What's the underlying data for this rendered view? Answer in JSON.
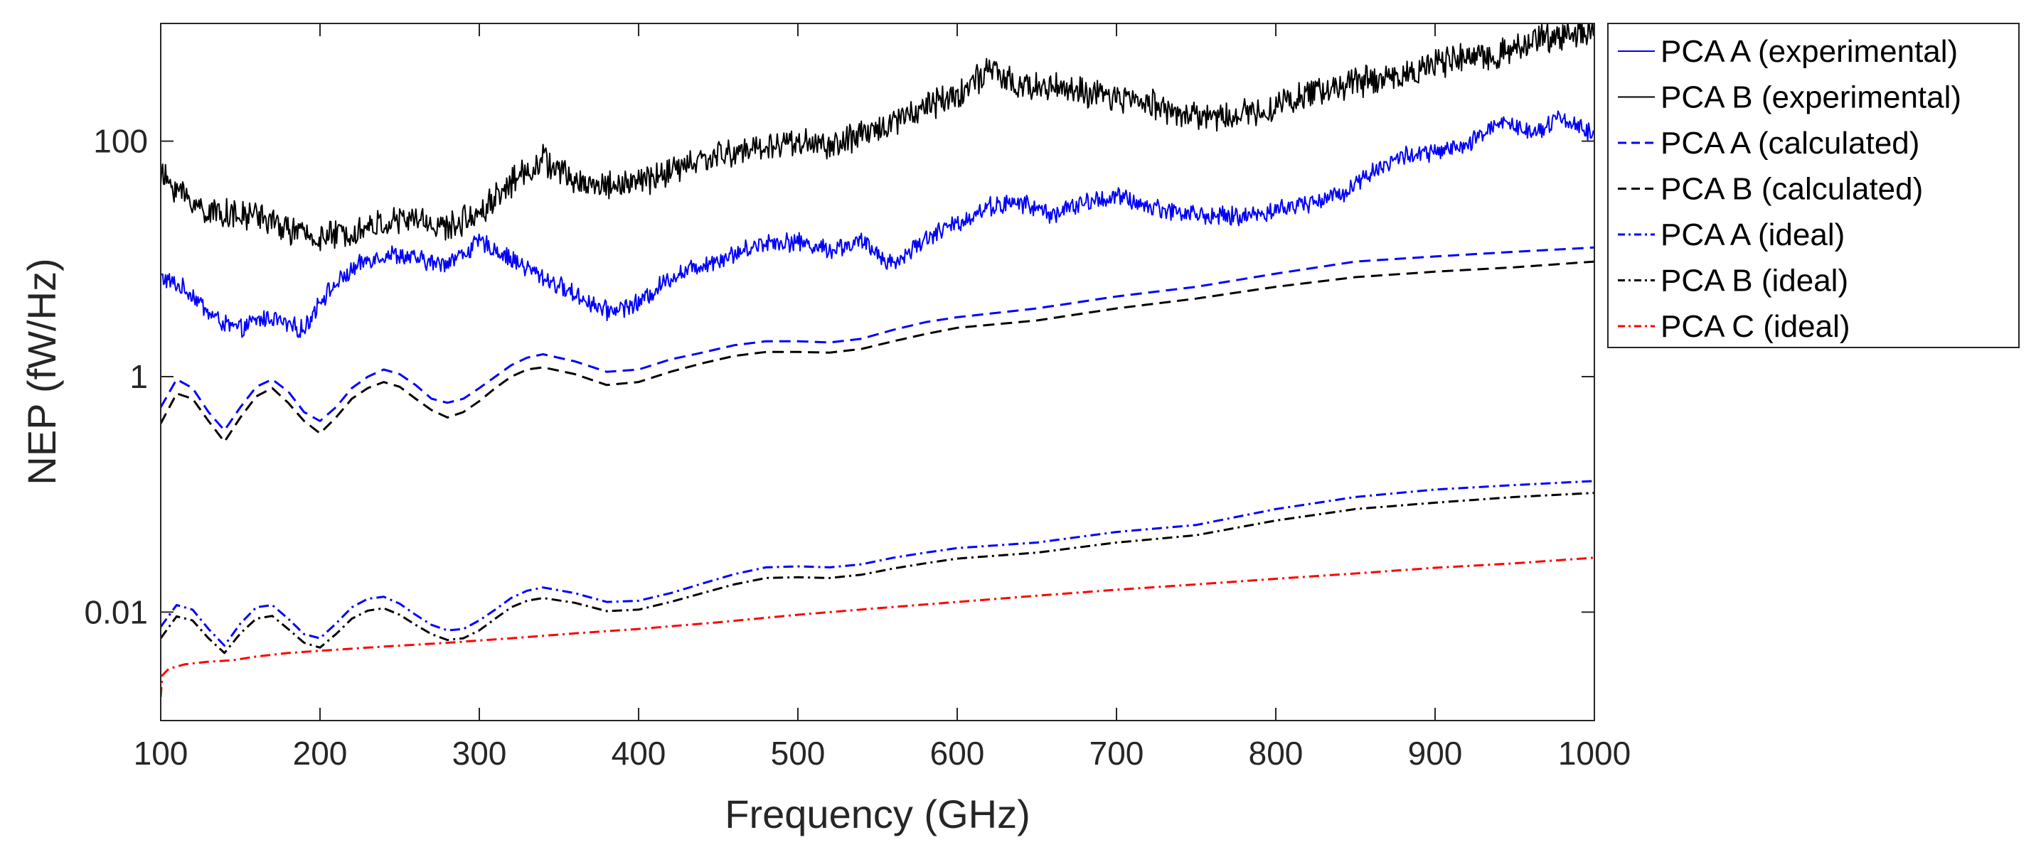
{
  "chart_data": {
    "type": "line",
    "title": "",
    "xlabel": "Frequency (GHz)",
    "ylabel": "NEP (fW/Hz)",
    "xscale": "linear",
    "yscale": "log",
    "xlim": [
      100,
      1000
    ],
    "ylim": [
      0.0012,
      1000
    ],
    "xticks": [
      100,
      200,
      300,
      400,
      500,
      600,
      700,
      800,
      900,
      1000
    ],
    "xtick_labels": [
      "100",
      "200",
      "300",
      "400",
      "500",
      "600",
      "700",
      "800",
      "900",
      "1000"
    ],
    "yticks": [
      0.01,
      1,
      100
    ],
    "ytick_labels": [
      "0.01",
      "1",
      "100"
    ],
    "grid": false,
    "legend_position": "outside-top-right",
    "series": [
      {
        "name": "PCA A (experimental)",
        "color": "#0000ff",
        "style": "solid",
        "noisy": true,
        "x": [
          100,
          110,
          120,
          130,
          140,
          150,
          160,
          170,
          180,
          190,
          200,
          215,
          230,
          245,
          260,
          275,
          290,
          300,
          310,
          320,
          340,
          360,
          380,
          400,
          420,
          440,
          460,
          480,
          500,
          520,
          540,
          560,
          580,
          600,
          620,
          640,
          660,
          680,
          700,
          720,
          740,
          760,
          780,
          800,
          820,
          840,
          860,
          880,
          900,
          920,
          940,
          960,
          980,
          1000
        ],
        "y": [
          7,
          6,
          5,
          3.5,
          2.8,
          2.5,
          3.0,
          3.2,
          2.7,
          2.5,
          4.5,
          7,
          10,
          11,
          10,
          9,
          11,
          14,
          12,
          10,
          7,
          5,
          3.6,
          4.2,
          7,
          9,
          11,
          14,
          14,
          12,
          14,
          9,
          15,
          20,
          28,
          30,
          24,
          30,
          34,
          28,
          25,
          23,
          23,
          26,
          30,
          35,
          55,
          75,
          80,
          90,
          150,
          120,
          160,
          110
        ]
      },
      {
        "name": "PCA B (experimental)",
        "color": "#000000",
        "style": "solid",
        "noisy": true,
        "x": [
          100,
          110,
          120,
          130,
          140,
          150,
          160,
          170,
          180,
          190,
          200,
          220,
          240,
          260,
          280,
          300,
          320,
          340,
          360,
          380,
          400,
          420,
          440,
          460,
          480,
          500,
          520,
          540,
          560,
          580,
          600,
          620,
          640,
          660,
          680,
          700,
          720,
          740,
          760,
          780,
          800,
          820,
          840,
          860,
          880,
          900,
          920,
          940,
          960,
          980,
          1000
        ],
        "y": [
          50,
          40,
          30,
          25,
          25,
          22,
          25,
          20,
          18,
          16,
          15,
          17,
          20,
          22,
          18,
          25,
          45,
          70,
          45,
          42,
          45,
          55,
          70,
          80,
          90,
          100,
          90,
          110,
          150,
          200,
          250,
          400,
          280,
          300,
          250,
          230,
          220,
          170,
          160,
          170,
          200,
          250,
          300,
          330,
          370,
          450,
          500,
          550,
          700,
          800,
          900
        ]
      },
      {
        "name": "PCA A (calculated)",
        "color": "#0000ff",
        "style": "dashed",
        "noisy": false,
        "x": [
          100,
          110,
          120,
          130,
          140,
          150,
          160,
          170,
          180,
          190,
          200,
          210,
          220,
          230,
          240,
          250,
          260,
          270,
          280,
          290,
          300,
          310,
          320,
          330,
          340,
          360,
          380,
          400,
          420,
          440,
          460,
          480,
          500,
          520,
          540,
          560,
          580,
          600,
          650,
          700,
          750,
          800,
          850,
          900,
          950,
          1000
        ],
        "y": [
          0.55,
          0.95,
          0.8,
          0.5,
          0.35,
          0.55,
          0.82,
          0.95,
          0.75,
          0.5,
          0.42,
          0.55,
          0.8,
          1.0,
          1.15,
          1.05,
          0.85,
          0.65,
          0.6,
          0.65,
          0.8,
          1.0,
          1.25,
          1.45,
          1.55,
          1.35,
          1.1,
          1.15,
          1.4,
          1.6,
          1.85,
          2.0,
          2.0,
          1.95,
          2.1,
          2.5,
          2.9,
          3.2,
          3.8,
          4.8,
          5.8,
          7.5,
          9.5,
          10.5,
          11.5,
          12.5
        ]
      },
      {
        "name": "PCA B (calculated)",
        "color": "#000000",
        "style": "dashed",
        "noisy": false,
        "x": [
          100,
          110,
          120,
          130,
          140,
          150,
          160,
          170,
          180,
          190,
          200,
          210,
          220,
          230,
          240,
          250,
          260,
          270,
          280,
          290,
          300,
          310,
          320,
          330,
          340,
          360,
          380,
          400,
          420,
          440,
          460,
          480,
          500,
          520,
          540,
          560,
          580,
          600,
          650,
          700,
          750,
          800,
          850,
          900,
          950,
          1000
        ],
        "y": [
          0.4,
          0.72,
          0.65,
          0.42,
          0.28,
          0.45,
          0.68,
          0.8,
          0.6,
          0.42,
          0.33,
          0.45,
          0.65,
          0.8,
          0.9,
          0.82,
          0.65,
          0.52,
          0.45,
          0.5,
          0.62,
          0.8,
          1.0,
          1.15,
          1.2,
          1.05,
          0.85,
          0.9,
          1.1,
          1.3,
          1.5,
          1.62,
          1.62,
          1.6,
          1.72,
          2.0,
          2.3,
          2.6,
          3.0,
          3.8,
          4.6,
          5.8,
          7.0,
          7.8,
          8.5,
          9.5
        ]
      },
      {
        "name": "PCA A (ideal)",
        "color": "#0000ff",
        "style": "dashdot",
        "noisy": false,
        "x": [
          100,
          110,
          120,
          130,
          140,
          150,
          160,
          170,
          180,
          190,
          200,
          210,
          220,
          230,
          240,
          250,
          260,
          270,
          280,
          290,
          300,
          310,
          320,
          330,
          340,
          360,
          380,
          400,
          420,
          440,
          460,
          480,
          500,
          520,
          540,
          560,
          580,
          600,
          650,
          700,
          750,
          800,
          850,
          900,
          950,
          1000
        ],
        "y": [
          0.0075,
          0.0115,
          0.0105,
          0.0072,
          0.0052,
          0.008,
          0.011,
          0.0115,
          0.0088,
          0.0065,
          0.006,
          0.008,
          0.011,
          0.013,
          0.0135,
          0.0118,
          0.0095,
          0.0078,
          0.007,
          0.0072,
          0.0085,
          0.0105,
          0.0132,
          0.0152,
          0.0162,
          0.0145,
          0.0122,
          0.0125,
          0.0145,
          0.0175,
          0.021,
          0.024,
          0.0245,
          0.024,
          0.0255,
          0.029,
          0.032,
          0.035,
          0.039,
          0.048,
          0.055,
          0.075,
          0.095,
          0.11,
          0.12,
          0.13
        ]
      },
      {
        "name": "PCA B (ideal)",
        "color": "#000000",
        "style": "dashdot",
        "noisy": false,
        "x": [
          100,
          110,
          120,
          130,
          140,
          150,
          160,
          170,
          180,
          190,
          200,
          210,
          220,
          230,
          240,
          250,
          260,
          270,
          280,
          290,
          300,
          310,
          320,
          330,
          340,
          360,
          380,
          400,
          420,
          440,
          460,
          480,
          500,
          520,
          540,
          560,
          580,
          600,
          650,
          700,
          750,
          800,
          850,
          900,
          950,
          1000
        ],
        "y": [
          0.006,
          0.0092,
          0.0085,
          0.006,
          0.0045,
          0.0066,
          0.0088,
          0.0093,
          0.0072,
          0.0055,
          0.005,
          0.0065,
          0.0088,
          0.0103,
          0.0108,
          0.0095,
          0.0078,
          0.0065,
          0.0058,
          0.006,
          0.007,
          0.0088,
          0.011,
          0.0125,
          0.0132,
          0.012,
          0.0102,
          0.0105,
          0.0122,
          0.0145,
          0.0172,
          0.0195,
          0.0198,
          0.0195,
          0.0208,
          0.0235,
          0.026,
          0.0285,
          0.032,
          0.039,
          0.045,
          0.06,
          0.075,
          0.085,
          0.095,
          0.103
        ]
      },
      {
        "name": "PCA C (ideal)",
        "color": "#ff0000",
        "style": "dashdot",
        "noisy": false,
        "x": [
          100,
          101,
          105,
          115,
          130,
          145,
          160,
          180,
          200,
          240,
          280,
          320,
          360,
          400,
          450,
          500,
          550,
          600,
          650,
          700,
          750,
          800,
          850,
          900,
          950,
          1000
        ],
        "y": [
          0.0019,
          0.0029,
          0.0033,
          0.0036,
          0.0038,
          0.0039,
          0.0042,
          0.0045,
          0.0047,
          0.0051,
          0.0055,
          0.006,
          0.0066,
          0.0072,
          0.0082,
          0.0095,
          0.0108,
          0.0122,
          0.0138,
          0.0155,
          0.0172,
          0.0192,
          0.0213,
          0.0238,
          0.026,
          0.029
        ]
      }
    ]
  }
}
